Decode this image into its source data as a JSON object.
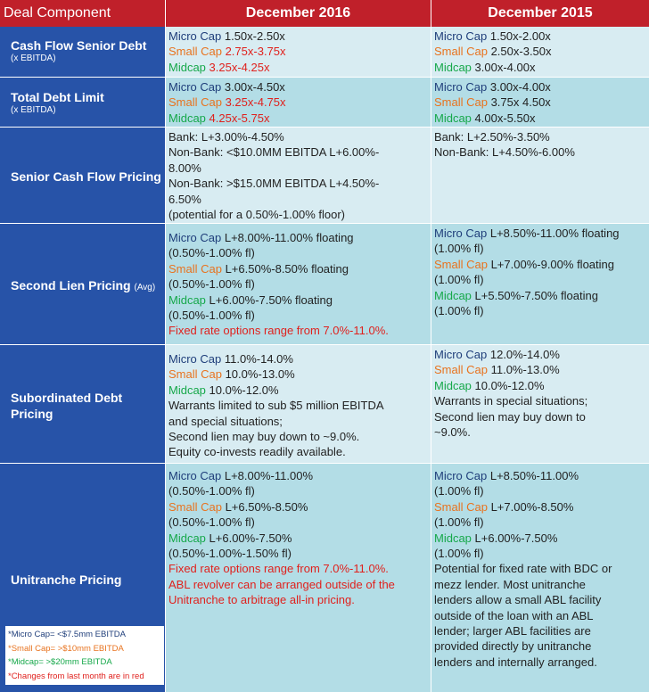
{
  "header": {
    "component": "Deal Component",
    "col1": "December 2016",
    "col2": "December 2015"
  },
  "rows": [
    {
      "label": "Cash Flow Senior Debt",
      "sub": "(x EBITDA)",
      "dec2016": [
        {
          "tag": "Micro Cap",
          "text": " 1.50x-2.50x"
        },
        {
          "tag": "Small Cap",
          "text": " 2.75x-3.75x"
        },
        {
          "tag": "Midcap",
          "text": " 3.25x-4.25x"
        }
      ],
      "dec2015": [
        {
          "tag": "Micro Cap",
          "text": " 1.50x-2.00x"
        },
        {
          "tag": "Small Cap",
          "text": "  2.50x-3.50x"
        },
        {
          "tag": "Midcap",
          "text": " 3.00x-4.00x"
        }
      ]
    },
    {
      "label": "Total Debt Limit",
      "sub": "(x EBITDA)",
      "dec2016": [
        {
          "tag": "Micro Cap",
          "text": " 3.00x-4.50x"
        },
        {
          "tag": "Small Cap",
          "text": " 3.25x-4.75x"
        },
        {
          "tag": "Midcap",
          "text": " 4.25x-5.75x"
        }
      ],
      "dec2015": [
        {
          "tag": "Micro Cap",
          "text": " 3.00x-4.00x"
        },
        {
          "tag": "Small Cap",
          "text": " 3.75x 4.50x"
        },
        {
          "tag": "Midcap",
          "text": " 4.00x-5.50x"
        }
      ]
    },
    {
      "label": "Senior Cash Flow Pricing",
      "dec2016": [
        "Bank: L+3.00%-4.50%",
        "Non-Bank: <$10.0MM EBITDA L+6.00%-",
        "8.00%",
        "Non-Bank: >$15.0MM EBITDA L+4.50%-",
        "6.50%",
        "(potential for a 0.50%-1.00% floor)"
      ],
      "dec2015": [
        "Bank: L+2.50%-3.50%",
        "Non-Bank: L+4.50%-6.00%"
      ]
    },
    {
      "label": "Second Lien Pricing",
      "label_suffix": "(Avg)",
      "dec2016": [
        {
          "tag": "Micro Cap",
          "text": " L+8.00%-11.00% floating"
        },
        "(0.50%-1.00% fl)",
        {
          "tag": "Small Cap",
          "text": " L+6.50%-8.50% floating"
        },
        "(0.50%-1.00% fl)",
        {
          "tag": "Midcap",
          "text": " L+6.00%-7.50% floating"
        },
        "(0.50%-1.00% fl)",
        "Fixed rate options range from 7.0%-11.0%."
      ],
      "dec2015": [
        {
          "tag": "Micro Cap",
          "text": " L+8.50%-11.00% floating"
        },
        "(1.00% fl)",
        {
          "tag": "Small Cap",
          "text": " L+7.00%-9.00% floating"
        },
        "(1.00% fl)",
        {
          "tag": "Midcap",
          "text": " L+5.50%-7.50% floating"
        },
        "(1.00% fl)"
      ]
    },
    {
      "label": "Subordinated Debt",
      "label2": "Pricing",
      "dec2016": [
        {
          "tag": "Micro Cap",
          "text": " 11.0%-14.0%"
        },
        {
          "tag": "Small Cap",
          "text": " 10.0%-13.0%"
        },
        {
          "tag": "Midcap",
          "text": " 10.0%-12.0%"
        },
        "Warrants limited to sub $5 million EBITDA",
        "and  special situations;",
        "Second lien may buy down to ~9.0%.",
        "Equity co-invests readily available."
      ],
      "dec2015": [
        {
          "tag": "Micro Cap",
          "text": " 12.0%-14.0%"
        },
        {
          "tag": "Small Cap",
          "text": " 11.0%-13.0%"
        },
        {
          "tag": "Midcap",
          "text": " 10.0%-12.0%"
        },
        "Warrants in special situations;",
        "Second lien may buy down to",
        "~9.0%."
      ]
    },
    {
      "label": "Unitranche Pricing",
      "dec2016": [
        {
          "tag": "Micro Cap",
          "text": " L+8.00%-11.00%"
        },
        "(0.50%-1.00% fl)",
        {
          "tag": "Small Cap",
          "text": " L+6.50%-8.50%"
        },
        "(0.50%-1.00% fl)",
        {
          "tag": "Midcap",
          "text": " L+6.00%-7.50%"
        },
        "(0.50%-1.00%-1.50% fl)",
        "Fixed rate options range from 7.0%-11.0%.",
        "ABL revolver can be arranged outside of the",
        "Unitranche to arbitrage all-in pricing."
      ],
      "dec2015": [
        {
          "tag": "Micro Cap",
          "text": " L+8.50%-11.00%"
        },
        "(1.00% fl)",
        {
          "tag": "Small Cap",
          "text": " L+7.00%-8.50%"
        },
        "(1.00% fl)",
        {
          "tag": "Midcap",
          "text": " L+6.00%-7.50%"
        },
        "(1.00% fl)",
        "Potential for fixed rate with BDC or",
        "mezz lender. Most unitranche",
        "lenders allow a small ABL facility",
        "outside of the loan with an ABL",
        "lender; larger ABL facilities are",
        "provided directly by unitranche",
        "lenders and internally arranged."
      ]
    }
  ],
  "legend": {
    "micro": "*Micro Cap= <$7.5mm EBITDA",
    "small": "*Small Cap= >$10mm EBITDA",
    "mid": "*Midcap= >$20mm EBITDA",
    "note": "*Changes from last month are in red"
  },
  "colors": {
    "header": "#c0202a",
    "label_column": "#2753a8",
    "row_light": "#d8ecf2",
    "row_teal": "#b3dde6",
    "micro": "#1f3e7a",
    "small": "#e8731f",
    "mid": "#16a84a",
    "changed": "#e0211d"
  }
}
